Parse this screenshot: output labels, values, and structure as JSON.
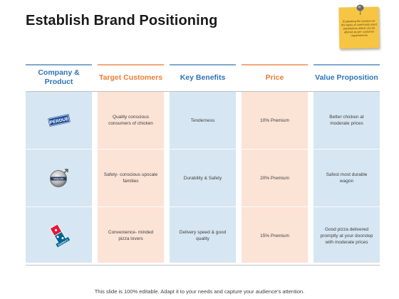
{
  "slide": {
    "title": "Establish Brand Positioning",
    "footer": "This slide is 100% editable. Adapt it to your needs and capture your audience's attention.",
    "note_text": "Evaluating the product on the basis of commonly used parameters which can be altered as per customer requirements"
  },
  "table": {
    "headers": {
      "company": "Company & Product",
      "target": "Target Customers",
      "benefits": "Key Benefits",
      "price": "Price",
      "value": "Value Proposition"
    },
    "rows": [
      {
        "logo_text": "PERDUE",
        "target": "Quality conscious consumers of chicken",
        "benefits": "Tenderness",
        "price": "10% Premium",
        "value": "Better chicken at moderate prices"
      },
      {
        "logo_text": "VOLVO",
        "target": "Safety- conscious upscale families",
        "benefits": "Durability & Safety",
        "price": "20% Premium",
        "value": "Safest most durable wagon"
      },
      {
        "logo_text": "Domino's",
        "target": "Convenience- minded pizza lovers",
        "benefits": "Delivery speed & good quality",
        "price": "15% Premium",
        "value": "Good pizza delivered promptly at your doorstep with moderate prices"
      }
    ]
  },
  "colors": {
    "blue_header": "#2e74b5",
    "orange_header": "#ed7d31",
    "blue_fill": "#d6e6f2",
    "peach_fill": "#fbe3d5",
    "sticky_note": "#f7c544"
  }
}
